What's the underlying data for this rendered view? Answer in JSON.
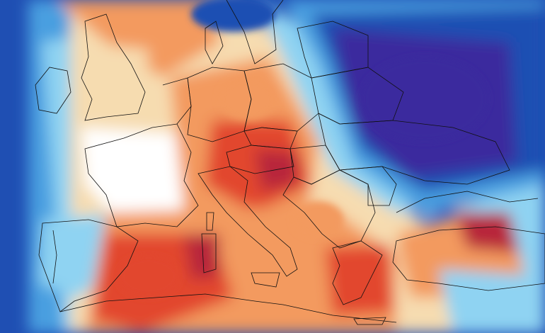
{
  "map": {
    "type": "temperature-anomaly-map",
    "region": "Europe",
    "text_labels": [],
    "colors": {
      "deep_cold": "#3b2a9e",
      "cold": "#1f4fb3",
      "cool": "#4a9fe0",
      "cool_light": "#8fd3f2",
      "neutral": "#ffffff",
      "warm_light": "#f6dcb0",
      "warm": "#f39a5e",
      "hot": "#e2462f",
      "very_hot": "#b8253a",
      "borders": "#111111"
    },
    "features": [
      "warm-anomaly-iberia-france-italy-balkans",
      "cold-anomaly-eastern-europe-russia",
      "warm-anomaly-turkey",
      "cold-anomaly-atlantic"
    ]
  }
}
